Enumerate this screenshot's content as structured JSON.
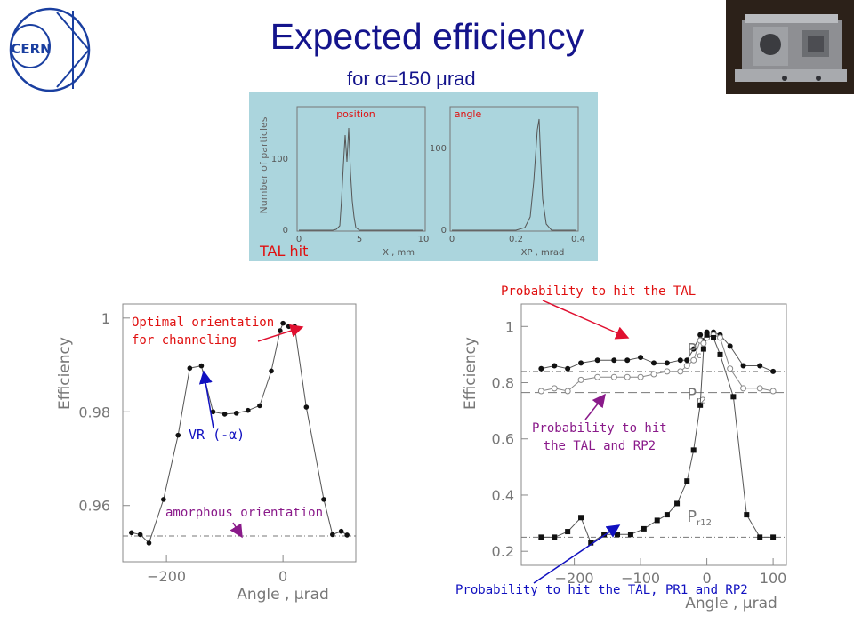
{
  "header": {
    "title": "Expected efficiency",
    "subtitle": "for α=150 μrad",
    "logo_text": "CERN"
  },
  "inset": {
    "panel_label_position": "position",
    "panel_label_angle": "angle",
    "ylabel": "Number of particles",
    "xlabel_left": "X , mm",
    "xlabel_right": "XP , mrad",
    "tal_hit_label": "TAL hit",
    "background_color": "#abd5dd"
  },
  "annotations": {
    "left": {
      "optimal_line1": "Optimal orientation",
      "optimal_line2": "for channeling",
      "vr": "VR (-α)",
      "amorphous": "amorphous orientation"
    },
    "right": {
      "prob_tal": "Probability to hit the TAL",
      "prob_rp2_line1": "Probability to hit",
      "prob_rp2_line2": "the TAL and RP2",
      "prob_all": "Probability to hit the TAL, PR1 and RP2"
    }
  },
  "chart_data": [
    {
      "type": "line",
      "title": "",
      "xlabel": "Angle , μrad",
      "ylabel": "Efficiency",
      "xlim": [
        -275,
        125
      ],
      "ylim": [
        0.948,
        1.003
      ],
      "xticks": [
        -200,
        0
      ],
      "yticks": [
        0.96,
        0.98,
        1
      ],
      "ytick_labels": [
        "0.96",
        "0.98",
        "1"
      ],
      "reference_line": 0.9535,
      "series": [
        {
          "marker": "filled-circle",
          "x": [
            -260,
            -245,
            -230,
            -205,
            -180,
            -160,
            -140,
            -120,
            -100,
            -80,
            -60,
            -40,
            -20,
            -5,
            0,
            10,
            20,
            40,
            70,
            85,
            100,
            110
          ],
          "y": [
            0.9542,
            0.9538,
            0.952,
            0.9613,
            0.975,
            0.9893,
            0.9898,
            0.98,
            0.9795,
            0.9797,
            0.9803,
            0.9813,
            0.9887,
            0.9973,
            0.9989,
            0.9982,
            0.9982,
            0.981,
            0.9613,
            0.9538,
            0.9545,
            0.9537
          ]
        }
      ]
    },
    {
      "type": "line",
      "title": "",
      "xlabel": "Angle , μrad",
      "ylabel": "Efficiency",
      "xlim": [
        -280,
        120
      ],
      "ylim": [
        0.15,
        1.08
      ],
      "xticks": [
        -200,
        -100,
        0,
        100
      ],
      "yticks": [
        0.2,
        0.4,
        0.6,
        0.8,
        1
      ],
      "ytick_labels": [
        "0.2",
        "0.4",
        "0.6",
        "0.8",
        "1"
      ],
      "reference_lines": [
        0.84,
        0.765,
        0.25
      ],
      "series": [
        {
          "name": "Pc",
          "marker": "filled-circle",
          "x": [
            -250,
            -230,
            -210,
            -190,
            -165,
            -140,
            -120,
            -100,
            -80,
            -60,
            -40,
            -30,
            -20,
            -10,
            -5,
            0,
            10,
            20,
            35,
            55,
            80,
            100
          ],
          "y": [
            0.85,
            0.86,
            0.85,
            0.87,
            0.88,
            0.88,
            0.88,
            0.89,
            0.87,
            0.87,
            0.88,
            0.88,
            0.92,
            0.97,
            0.95,
            0.98,
            0.98,
            0.97,
            0.93,
            0.86,
            0.86,
            0.84
          ]
        },
        {
          "name": "Pr2",
          "marker": "open-circle",
          "x": [
            -250,
            -230,
            -210,
            -190,
            -165,
            -140,
            -120,
            -100,
            -80,
            -60,
            -40,
            -30,
            -20,
            -10,
            -5,
            0,
            10,
            20,
            35,
            55,
            80,
            100
          ],
          "y": [
            0.77,
            0.78,
            0.77,
            0.81,
            0.82,
            0.82,
            0.82,
            0.82,
            0.83,
            0.84,
            0.84,
            0.86,
            0.88,
            0.95,
            0.94,
            0.96,
            0.97,
            0.96,
            0.85,
            0.78,
            0.78,
            0.77
          ]
        },
        {
          "name": "Pr12",
          "marker": "filled-square",
          "x": [
            -250,
            -230,
            -210,
            -190,
            -175,
            -155,
            -135,
            -115,
            -95,
            -75,
            -60,
            -45,
            -30,
            -20,
            -10,
            -5,
            0,
            10,
            20,
            40,
            60,
            80,
            100
          ],
          "y": [
            0.25,
            0.25,
            0.27,
            0.32,
            0.23,
            0.26,
            0.26,
            0.26,
            0.28,
            0.31,
            0.33,
            0.37,
            0.45,
            0.56,
            0.72,
            0.92,
            0.97,
            0.96,
            0.9,
            0.75,
            0.33,
            0.25,
            0.25
          ]
        }
      ]
    }
  ]
}
